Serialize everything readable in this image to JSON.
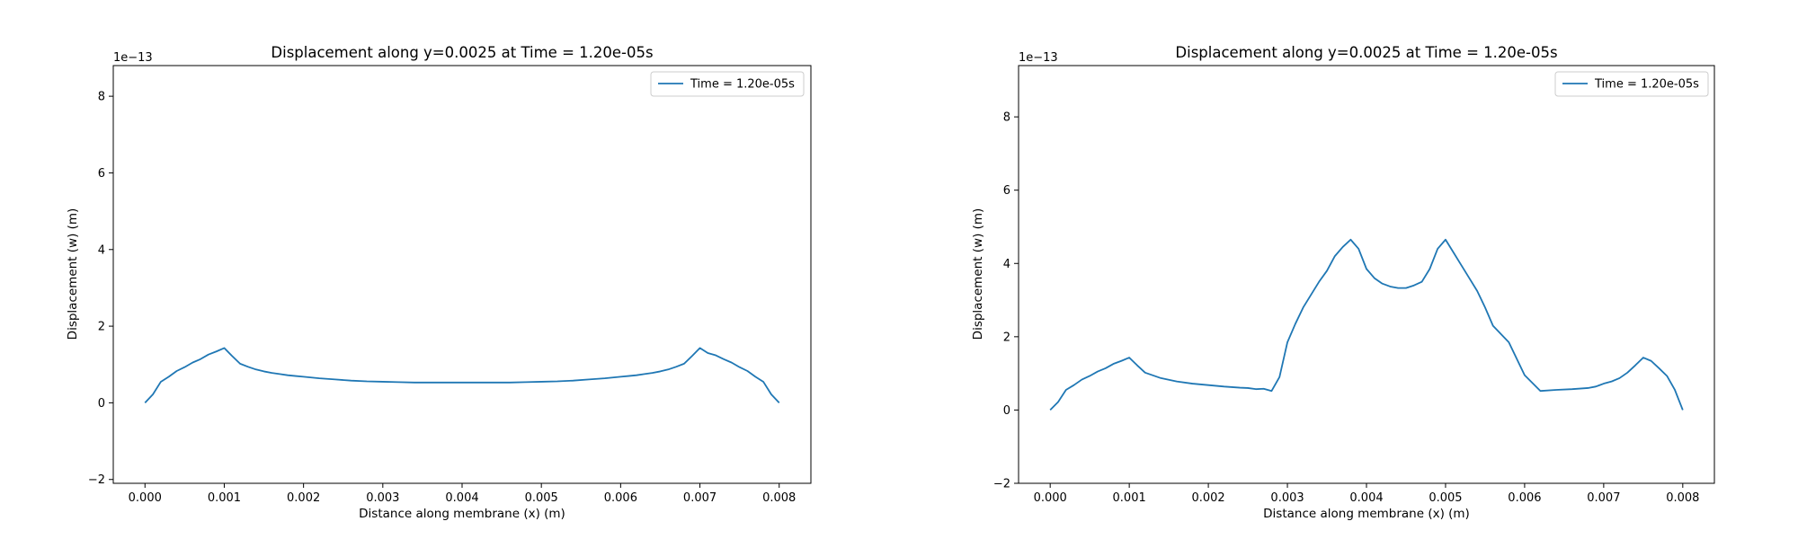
{
  "chart_data": [
    {
      "type": "line",
      "title": "Displacement along y=0.0025 at Time = 1.20e-05s",
      "xlabel": "Distance along membrane (x) (m)",
      "ylabel": "Displacement (w) (m)",
      "y_multiplier": "1e−13",
      "xlim": [
        -0.0004,
        0.0084
      ],
      "ylim": [
        -2.1,
        8.8
      ],
      "xticks": [
        0.0,
        0.001,
        0.002,
        0.003,
        0.004,
        0.005,
        0.006,
        0.007,
        0.008
      ],
      "xtick_labels": [
        "0.000",
        "0.001",
        "0.002",
        "0.003",
        "0.004",
        "0.005",
        "0.006",
        "0.007",
        "0.008"
      ],
      "yticks": [
        -2,
        0,
        2,
        4,
        6,
        8
      ],
      "ytick_labels": [
        "−2",
        "0",
        "2",
        "4",
        "6",
        "8"
      ],
      "grid": false,
      "legend_position": "upper right",
      "series": [
        {
          "name": "Time = 1.20e-05s",
          "color": "#1f77b4",
          "x": [
            0.0,
            0.0001,
            0.0002,
            0.0003,
            0.0004,
            0.0005,
            0.0006,
            0.0007,
            0.0008,
            0.0009,
            0.001,
            0.0011,
            0.0012,
            0.0013,
            0.0014,
            0.0015,
            0.0016,
            0.0017,
            0.0018,
            0.0019,
            0.002,
            0.0022,
            0.0024,
            0.0026,
            0.0028,
            0.003,
            0.0032,
            0.0034,
            0.0036,
            0.0038,
            0.004,
            0.0042,
            0.0044,
            0.0046,
            0.0048,
            0.005,
            0.0052,
            0.0054,
            0.0056,
            0.0058,
            0.006,
            0.0061,
            0.0062,
            0.0063,
            0.0064,
            0.0065,
            0.0066,
            0.0067,
            0.0068,
            0.0069,
            0.007,
            0.0071,
            0.0072,
            0.0073,
            0.0074,
            0.0075,
            0.0076,
            0.0077,
            0.0078,
            0.0079,
            0.008
          ],
          "values": [
            0.0,
            0.22,
            0.55,
            0.68,
            0.83,
            0.93,
            1.05,
            1.14,
            1.26,
            1.34,
            1.43,
            1.22,
            1.02,
            0.94,
            0.87,
            0.82,
            0.78,
            0.75,
            0.72,
            0.7,
            0.68,
            0.64,
            0.61,
            0.58,
            0.56,
            0.55,
            0.54,
            0.53,
            0.53,
            0.53,
            0.53,
            0.53,
            0.53,
            0.53,
            0.54,
            0.55,
            0.56,
            0.58,
            0.61,
            0.64,
            0.68,
            0.7,
            0.72,
            0.75,
            0.78,
            0.82,
            0.87,
            0.94,
            1.02,
            1.22,
            1.43,
            1.3,
            1.24,
            1.14,
            1.05,
            0.93,
            0.83,
            0.68,
            0.55,
            0.22,
            0.0
          ]
        }
      ]
    },
    {
      "type": "line",
      "title": "Displacement along y=0.0025 at Time = 1.20e-05s",
      "xlabel": "Distance along membrane (x) (m)",
      "ylabel": "Displacement (w) (m)",
      "y_multiplier": "1e−13",
      "xlim": [
        -0.0004,
        0.0084
      ],
      "ylim": [
        -2.0,
        9.4
      ],
      "xticks": [
        0.0,
        0.001,
        0.002,
        0.003,
        0.004,
        0.005,
        0.006,
        0.007,
        0.008
      ],
      "xtick_labels": [
        "0.000",
        "0.001",
        "0.002",
        "0.003",
        "0.004",
        "0.005",
        "0.006",
        "0.007",
        "0.008"
      ],
      "yticks": [
        -2,
        0,
        2,
        4,
        6,
        8
      ],
      "ytick_labels": [
        "−2",
        "0",
        "2",
        "4",
        "6",
        "8"
      ],
      "grid": false,
      "legend_position": "upper right",
      "series": [
        {
          "name": "Time = 1.20e-05s",
          "color": "#1f77b4",
          "x": [
            0.0,
            0.0001,
            0.0002,
            0.0003,
            0.0004,
            0.0005,
            0.0006,
            0.0007,
            0.0008,
            0.0009,
            0.001,
            0.0011,
            0.0012,
            0.0014,
            0.0016,
            0.0018,
            0.002,
            0.0022,
            0.0024,
            0.0025,
            0.0026,
            0.0027,
            0.0028,
            0.0029,
            0.003,
            0.0031,
            0.0032,
            0.0033,
            0.0034,
            0.0035,
            0.0036,
            0.0037,
            0.0038,
            0.0039,
            0.004,
            0.0041,
            0.0042,
            0.0043,
            0.0044,
            0.0045,
            0.0046,
            0.0047,
            0.0048,
            0.0049,
            0.005,
            0.0051,
            0.0052,
            0.0053,
            0.0054,
            0.0055,
            0.0056,
            0.0058,
            0.006,
            0.0062,
            0.0064,
            0.0066,
            0.0068,
            0.0069,
            0.007,
            0.0071,
            0.0072,
            0.0073,
            0.0074,
            0.0075,
            0.0076,
            0.0077,
            0.0078,
            0.0079,
            0.008
          ],
          "values": [
            0.0,
            0.22,
            0.55,
            0.68,
            0.83,
            0.93,
            1.05,
            1.14,
            1.26,
            1.34,
            1.43,
            1.22,
            1.02,
            0.87,
            0.78,
            0.72,
            0.68,
            0.64,
            0.61,
            0.6,
            0.57,
            0.58,
            0.52,
            0.9,
            1.85,
            2.35,
            2.8,
            3.15,
            3.5,
            3.8,
            4.2,
            4.45,
            4.65,
            4.4,
            3.85,
            3.6,
            3.45,
            3.37,
            3.33,
            3.33,
            3.4,
            3.5,
            3.85,
            4.4,
            4.65,
            4.3,
            3.95,
            3.6,
            3.25,
            2.8,
            2.3,
            1.85,
            0.95,
            0.52,
            0.55,
            0.57,
            0.6,
            0.64,
            0.72,
            0.78,
            0.87,
            1.02,
            1.22,
            1.43,
            1.34,
            1.14,
            0.93,
            0.55,
            0.0
          ]
        }
      ]
    }
  ]
}
